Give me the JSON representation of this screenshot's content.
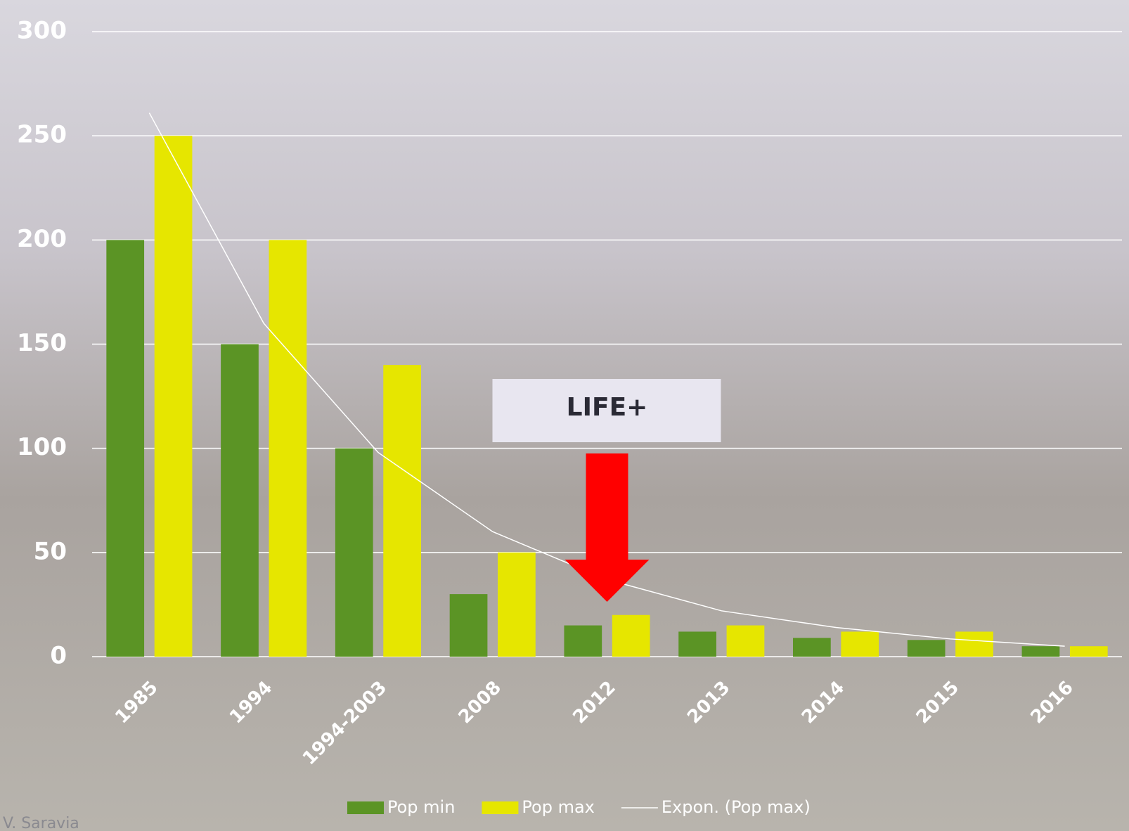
{
  "chart_data": {
    "type": "bar",
    "categories": [
      "1985",
      "1994",
      "1994-2003",
      "2008",
      "2012",
      "2013",
      "2014",
      "2015",
      "2016"
    ],
    "series": [
      {
        "name": "Pop min",
        "color": "#5b9425",
        "values": [
          200,
          150,
          100,
          30,
          15,
          12,
          9,
          8,
          5
        ]
      },
      {
        "name": "Pop max",
        "color": "#e6e600",
        "values": [
          250,
          200,
          140,
          50,
          20,
          15,
          12,
          12,
          5
        ]
      },
      {
        "name": "Expon. (Pop max)",
        "type": "line",
        "color": "#ffffff",
        "values": [
          261,
          160,
          98,
          60,
          37,
          22,
          14,
          8.5,
          5
        ]
      }
    ],
    "ylim": [
      0,
      300
    ],
    "yticks": [
      0,
      50,
      100,
      150,
      200,
      250,
      300
    ],
    "grid": true,
    "legend": "bottom",
    "annotation": {
      "text": "LIFE+",
      "category": "2012"
    },
    "credit": "V. Saravia"
  }
}
